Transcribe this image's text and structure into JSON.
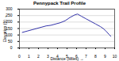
{
  "chart_data": {
    "type": "line",
    "title": "Pennypack Trail Profile",
    "x_label": "Distance (Miles)",
    "y_label": "Elevation (ft)",
    "x": [
      0.3,
      0.8,
      1.3,
      1.8,
      2.3,
      2.8,
      3.3,
      3.8,
      4.3,
      4.8,
      5.3,
      5.8,
      6.1,
      6.5,
      7.0,
      7.5,
      8.0,
      8.5,
      8.8,
      9.1,
      9.4,
      9.6
    ],
    "series": [
      {
        "name": "Elevation",
        "color": "#3333aa",
        "values": [
          120,
          130,
          140,
          150,
          160,
          170,
          175,
          185,
          195,
          210,
          235,
          255,
          262,
          245,
          225,
          205,
          185,
          165,
          150,
          130,
          105,
          90
        ]
      }
    ],
    "xlim": [
      0,
      10
    ],
    "xticks": [
      0,
      1,
      2,
      3,
      4,
      5,
      6,
      7,
      8,
      9,
      10
    ],
    "ylim": [
      0,
      300
    ],
    "yticks": [
      0,
      50,
      100,
      150,
      200,
      250,
      300
    ],
    "grid": true
  }
}
